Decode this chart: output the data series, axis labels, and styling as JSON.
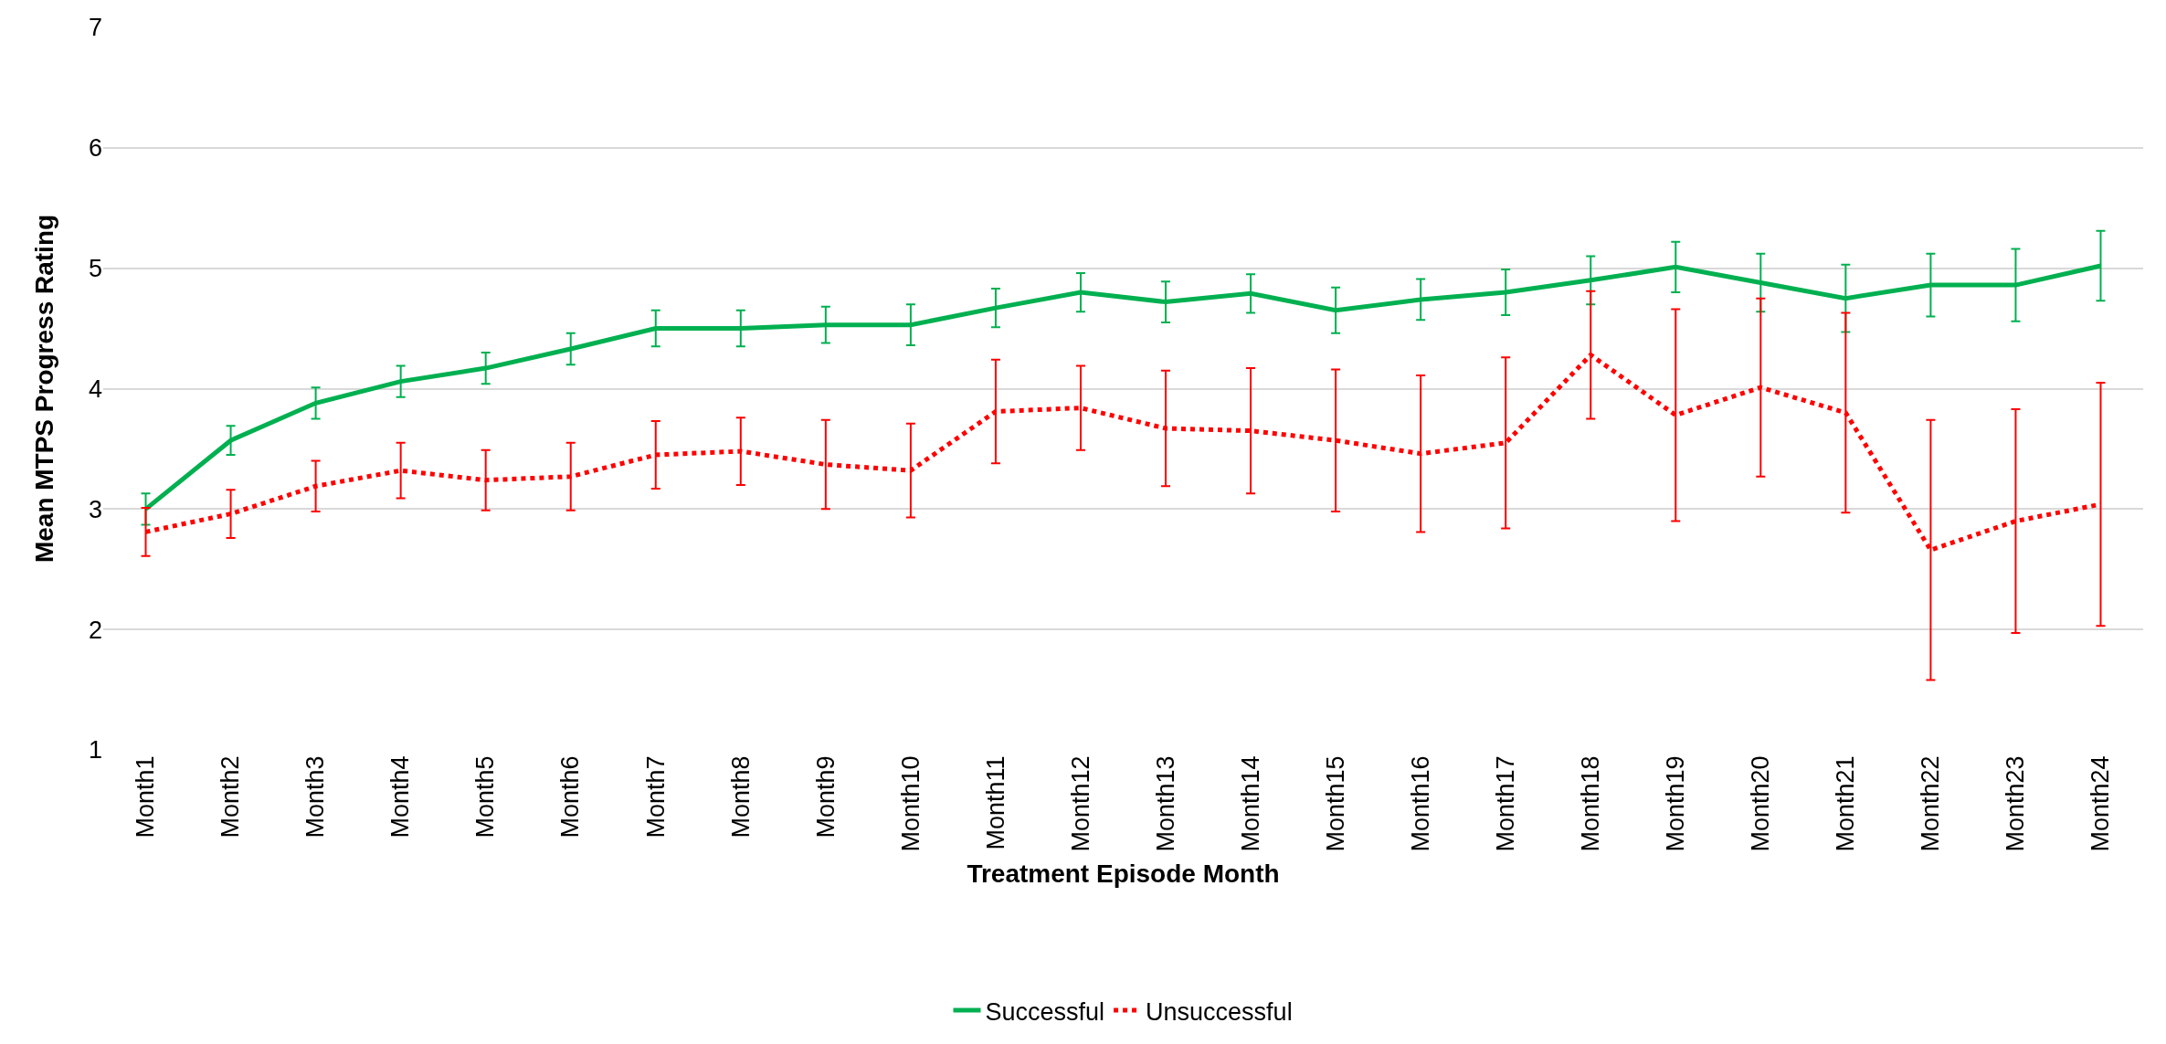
{
  "chart_data": {
    "type": "line",
    "xlabel": "Treatment Episode Month",
    "ylabel": "Mean MTPS Progress Rating",
    "categories": [
      "Month1",
      "Month2",
      "Month3",
      "Month4",
      "Month5",
      "Month6",
      "Month7",
      "Month8",
      "Month9",
      "Month10",
      "Month11",
      "Month12",
      "Month13",
      "Month14",
      "Month15",
      "Month16",
      "Month17",
      "Month18",
      "Month19",
      "Month20",
      "Month21",
      "Month22",
      "Month23",
      "Month24"
    ],
    "series": [
      {
        "name": "Successful",
        "color": "#00b050",
        "line_style": "solid",
        "values": [
          3.0,
          3.57,
          3.88,
          4.06,
          4.17,
          4.33,
          4.5,
          4.5,
          4.53,
          4.53,
          4.67,
          4.8,
          4.72,
          4.79,
          4.65,
          4.74,
          4.8,
          4.9,
          5.01,
          4.88,
          4.75,
          4.86,
          4.86,
          5.02
        ],
        "errors": [
          0.13,
          0.12,
          0.13,
          0.13,
          0.13,
          0.13,
          0.15,
          0.15,
          0.15,
          0.17,
          0.16,
          0.16,
          0.17,
          0.16,
          0.19,
          0.17,
          0.19,
          0.2,
          0.21,
          0.24,
          0.28,
          0.26,
          0.3,
          0.29
        ]
      },
      {
        "name": "Unsuccessful",
        "color": "#ff0000",
        "line_style": "dotted",
        "values": [
          2.81,
          2.96,
          3.19,
          3.32,
          3.24,
          3.27,
          3.45,
          3.48,
          3.37,
          3.32,
          3.81,
          3.84,
          3.67,
          3.65,
          3.57,
          3.46,
          3.55,
          4.28,
          3.78,
          4.01,
          3.8,
          2.66,
          2.9,
          3.04
        ],
        "errors": [
          0.2,
          0.2,
          0.21,
          0.23,
          0.25,
          0.28,
          0.28,
          0.28,
          0.37,
          0.39,
          0.43,
          0.35,
          0.48,
          0.52,
          0.59,
          0.65,
          0.71,
          0.53,
          0.88,
          0.74,
          0.83,
          1.08,
          0.93,
          1.01
        ]
      }
    ],
    "ylim": [
      1,
      7
    ],
    "yticks": [
      1,
      2,
      3,
      4,
      5,
      6,
      7
    ],
    "grid": "y",
    "legend": "bottom",
    "marker": "none"
  }
}
